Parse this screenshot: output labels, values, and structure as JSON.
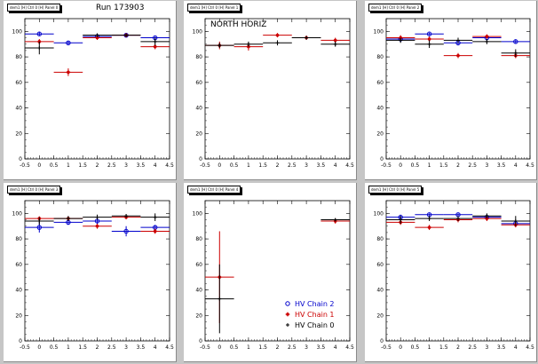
{
  "run_label": "Run 173903",
  "chart_data": [
    {
      "type": "scatter",
      "title": "dem1 [H] Ctrl 0 [H] Panel 0",
      "annotation": "Run 173903",
      "xlim": [
        -0.5,
        4.5
      ],
      "ylim": [
        0,
        110
      ],
      "xticks": [
        "-0.5",
        "0",
        "0.5",
        "1",
        "1.5",
        "2",
        "2.5",
        "3",
        "3.5",
        "4",
        "4.5"
      ],
      "yticks": [
        "0",
        "20",
        "40",
        "60",
        "80",
        "100"
      ],
      "series": [
        {
          "name": "HV Chain 2",
          "color": "#0000cc",
          "marker": "circle",
          "x": [
            0,
            1,
            2,
            3,
            4
          ],
          "y": [
            98,
            91,
            96,
            97,
            95
          ],
          "yerr": [
            1.5,
            1.5,
            1.5,
            1,
            1
          ]
        },
        {
          "name": "HV Chain 1",
          "color": "#cc0000",
          "marker": "star",
          "x": [
            0,
            1,
            2,
            3,
            4
          ],
          "y": [
            92,
            68,
            95,
            97,
            88
          ],
          "yerr": [
            2,
            3,
            1.5,
            1,
            2
          ]
        },
        {
          "name": "HV Chain 0",
          "color": "#000000",
          "marker": "plus",
          "x": [
            0,
            2,
            3,
            4
          ],
          "y": [
            87,
            97,
            97,
            92
          ],
          "yerr": [
            5,
            1.5,
            1,
            3
          ]
        }
      ]
    },
    {
      "type": "scatter",
      "title": "dem1 [H] Ctrl 0 [H] Panel 1",
      "annotation": "NORTH HORIZ",
      "xlim": [
        -0.5,
        4.5
      ],
      "ylim": [
        0,
        110
      ],
      "xticks": [
        "-0.5",
        "0",
        "0.5",
        "1",
        "1.5",
        "2",
        "2.5",
        "3",
        "3.5",
        "4",
        "4.5"
      ],
      "yticks": [
        "0",
        "20",
        "40",
        "60",
        "80",
        "100"
      ],
      "series": [
        {
          "name": "HV Chain 1",
          "color": "#cc0000",
          "marker": "star",
          "x": [
            0,
            1,
            2,
            3,
            4
          ],
          "y": [
            89,
            88,
            97,
            95,
            93
          ],
          "yerr": [
            3,
            3,
            1.5,
            1.5,
            2
          ]
        },
        {
          "name": "HV Chain 0",
          "color": "#000000",
          "marker": "plus",
          "x": [
            0,
            1,
            2,
            3,
            4
          ],
          "y": [
            89,
            90,
            91,
            95,
            90
          ],
          "yerr": [
            2,
            2,
            2,
            1.5,
            2
          ]
        }
      ]
    },
    {
      "type": "scatter",
      "title": "dem1 [H] Ctrl 0 [H] Panel 2",
      "annotation": "",
      "xlim": [
        -0.5,
        4.5
      ],
      "ylim": [
        0,
        110
      ],
      "xticks": [
        "-0.5",
        "0",
        "0.5",
        "1",
        "1.5",
        "2",
        "2.5",
        "3",
        "3.5",
        "4",
        "4.5"
      ],
      "yticks": [
        "0",
        "20",
        "40",
        "60",
        "80",
        "100"
      ],
      "series": [
        {
          "name": "HV Chain 2",
          "color": "#0000cc",
          "marker": "circle",
          "x": [
            0,
            1,
            2,
            3,
            4
          ],
          "y": [
            94,
            98,
            91,
            95,
            92
          ],
          "yerr": [
            2,
            1,
            2,
            2,
            1.5
          ]
        },
        {
          "name": "HV Chain 1",
          "color": "#cc0000",
          "marker": "star",
          "x": [
            0,
            1,
            2,
            3,
            4
          ],
          "y": [
            95,
            94,
            81,
            96,
            81
          ],
          "yerr": [
            2,
            2,
            2,
            1.5,
            2
          ]
        },
        {
          "name": "HV Chain 0",
          "color": "#000000",
          "marker": "plus",
          "x": [
            0,
            1,
            2,
            3,
            4
          ],
          "y": [
            93,
            90,
            93,
            92,
            83
          ],
          "yerr": [
            2,
            3,
            2,
            2,
            3
          ]
        }
      ]
    },
    {
      "type": "scatter",
      "title": "dem1 [H] Ctrl 0 [H] Panel 3",
      "annotation": "",
      "xlim": [
        -0.5,
        4.5
      ],
      "ylim": [
        0,
        110
      ],
      "xticks": [
        "-0.5",
        "0",
        "0.5",
        "1",
        "1.5",
        "2",
        "2.5",
        "3",
        "3.5",
        "4",
        "4.5"
      ],
      "yticks": [
        "0",
        "20",
        "40",
        "60",
        "80",
        "100"
      ],
      "series": [
        {
          "name": "HV Chain 2",
          "color": "#0000cc",
          "marker": "circle",
          "x": [
            0,
            1,
            2,
            3,
            4
          ],
          "y": [
            89,
            93,
            94,
            86,
            89
          ],
          "yerr": [
            4,
            2,
            3,
            4,
            2
          ]
        },
        {
          "name": "HV Chain 1",
          "color": "#cc0000",
          "marker": "star",
          "x": [
            0,
            1,
            2,
            3,
            4
          ],
          "y": [
            96,
            96,
            90,
            97,
            86
          ],
          "yerr": [
            1.5,
            1.5,
            2,
            1.5,
            2
          ]
        },
        {
          "name": "HV Chain 0",
          "color": "#000000",
          "marker": "plus",
          "x": [
            0,
            1,
            2,
            3,
            4
          ],
          "y": [
            94,
            96,
            97,
            98,
            97
          ],
          "yerr": [
            3,
            2,
            2,
            1.5,
            3
          ]
        }
      ]
    },
    {
      "type": "scatter",
      "title": "dem1 [H] Ctrl 0 [H] Panel 4",
      "annotation": "",
      "xlim": [
        -0.5,
        4.5
      ],
      "ylim": [
        0,
        110
      ],
      "xticks": [
        "-0.5",
        "0",
        "0.5",
        "1",
        "1.5",
        "2",
        "2.5",
        "3",
        "3.5",
        "4",
        "4.5"
      ],
      "yticks": [
        "0",
        "20",
        "40",
        "60",
        "80",
        "100"
      ],
      "legend": {
        "placement": "bottom-right",
        "entries": [
          {
            "label": "HV Chain 2",
            "color": "#0000cc",
            "marker": "circle"
          },
          {
            "label": "HV Chain 1",
            "color": "#cc0000",
            "marker": "star"
          },
          {
            "label": "HV Chain 0",
            "color": "#000000",
            "marker": "plus"
          }
        ]
      },
      "series": [
        {
          "name": "HV Chain 1",
          "color": "#cc0000",
          "marker": "star",
          "x": [
            0,
            4
          ],
          "y": [
            50,
            94
          ],
          "yerr": [
            36,
            2
          ]
        },
        {
          "name": "HV Chain 0",
          "color": "#000000",
          "marker": "plus",
          "x": [
            0,
            4
          ],
          "y": [
            33,
            95
          ],
          "yerr": [
            27,
            1
          ]
        }
      ]
    },
    {
      "type": "scatter",
      "title": "dem1 [H] Ctrl 0 [H] Panel 5",
      "annotation": "",
      "xlim": [
        -0.5,
        4.5
      ],
      "ylim": [
        0,
        110
      ],
      "xticks": [
        "-0.5",
        "0",
        "0.5",
        "1",
        "1.5",
        "2",
        "2.5",
        "3",
        "3.5",
        "4",
        "4.5"
      ],
      "yticks": [
        "0",
        "20",
        "40",
        "60",
        "80",
        "100"
      ],
      "series": [
        {
          "name": "HV Chain 2",
          "color": "#0000cc",
          "marker": "circle",
          "x": [
            0,
            1,
            2,
            3,
            4
          ],
          "y": [
            97,
            99,
            99,
            97,
            92
          ],
          "yerr": [
            2,
            1,
            1,
            1.5,
            2
          ]
        },
        {
          "name": "HV Chain 1",
          "color": "#cc0000",
          "marker": "star",
          "x": [
            0,
            1,
            2,
            3,
            4
          ],
          "y": [
            93,
            89,
            95,
            96,
            91
          ],
          "yerr": [
            2,
            2,
            2,
            2,
            2
          ]
        },
        {
          "name": "HV Chain 0",
          "color": "#000000",
          "marker": "plus",
          "x": [
            0,
            1,
            2,
            3,
            4
          ],
          "y": [
            95,
            96,
            96,
            98,
            94
          ],
          "yerr": [
            3,
            2,
            2,
            2,
            4
          ]
        }
      ]
    }
  ]
}
